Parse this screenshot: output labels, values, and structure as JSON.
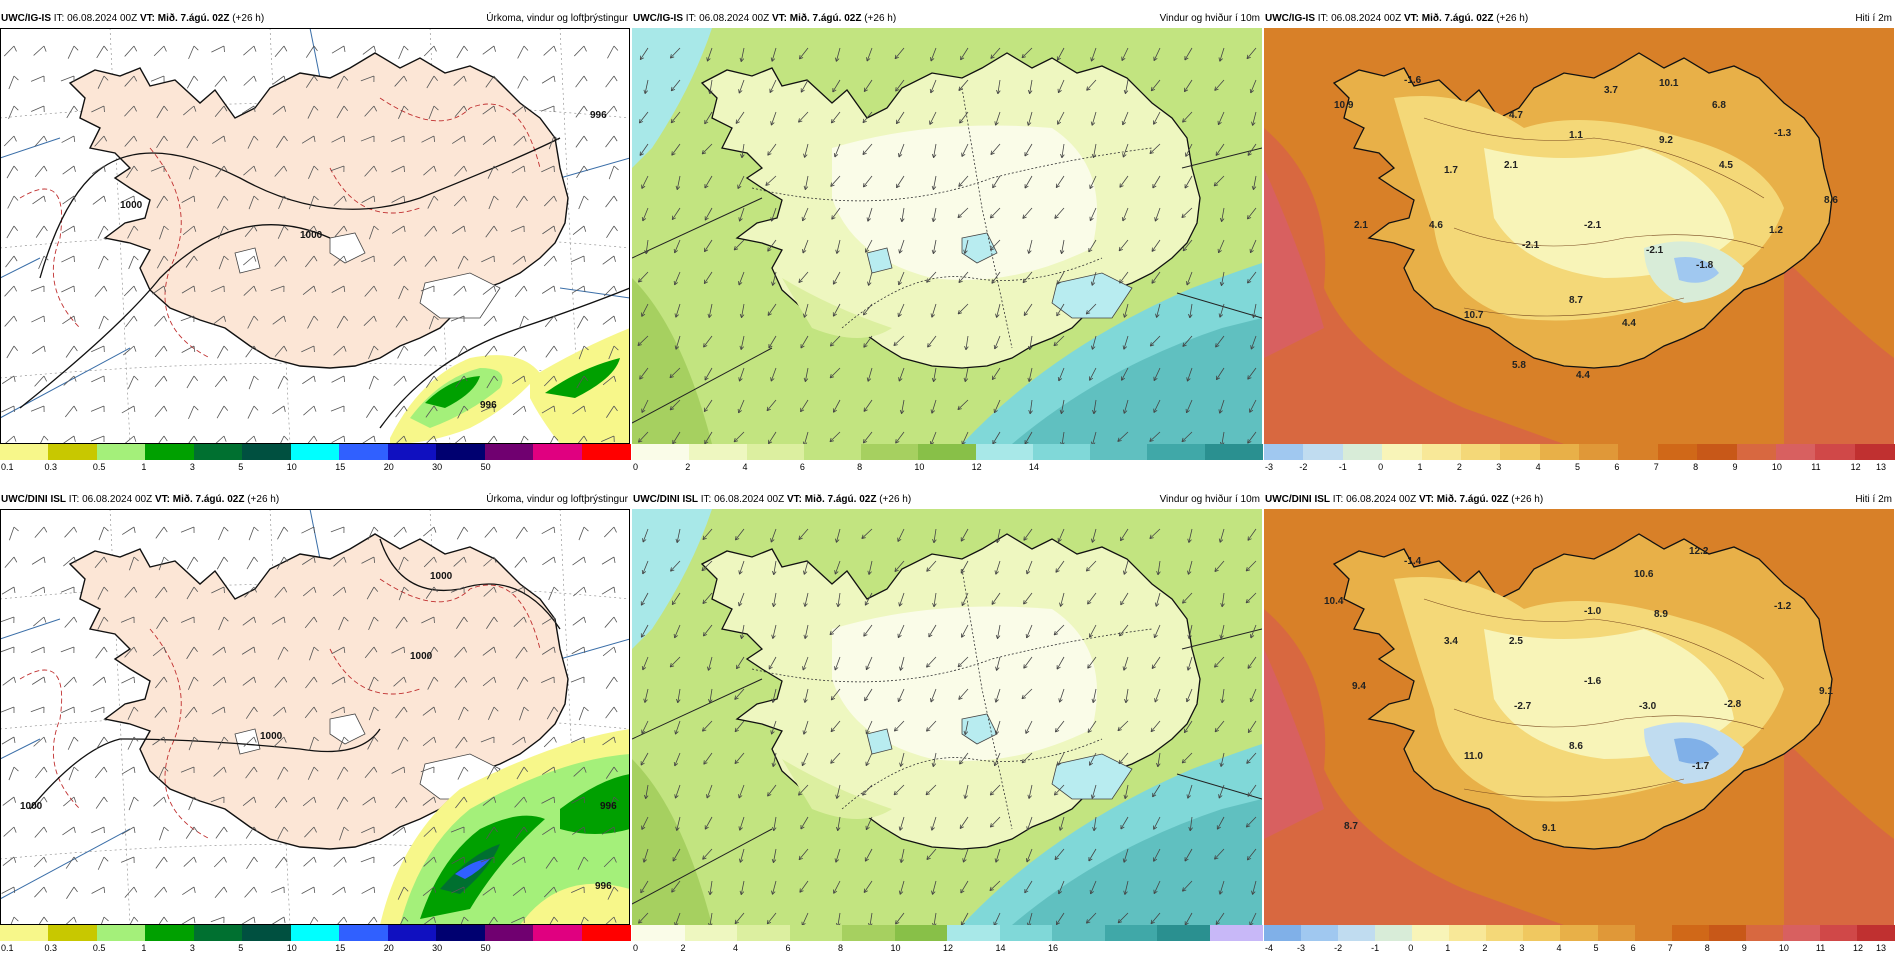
{
  "header": {
    "it_label": "IT:",
    "vt_label": "VT:",
    "run_time": "06.08.2024 00Z",
    "valid_time": "Mið. 7.ágú. 02Z",
    "lead": "(+26 h)"
  },
  "rows": [
    {
      "model": "UWC/IG-IS",
      "panels": [
        {
          "kind": "precip",
          "title": "Úrkoma, vindur og loftþrýstingur",
          "colorbar": {
            "colors": [
              "#f7f78a",
              "#c8c800",
              "#a4f07a",
              "#00a000",
              "#007030",
              "#005040",
              "#00ffff",
              "#3060ff",
              "#1010c0",
              "#000070",
              "#700070",
              "#e00080",
              "#ff0000"
            ],
            "ticks": [
              "0.1",
              "0.3",
              "0.5",
              "1",
              "3",
              "5",
              "10",
              "15",
              "20",
              "30",
              "50"
            ]
          },
          "labels": [
            {
              "text": "1000"
            },
            {
              "text": "1000"
            },
            {
              "text": "996"
            },
            {
              "text": "996"
            }
          ]
        },
        {
          "kind": "wind",
          "title": "Vindur og hviður í 10m",
          "colorbar": {
            "colors": [
              "#fafce8",
              "#eef7c0",
              "#dcefa0",
              "#c2e480",
              "#a6d060",
              "#88c048",
              "#a8e8e8",
              "#80d8d8",
              "#60c0c0",
              "#40a8a8",
              "#2a9090"
            ],
            "ticks": [
              "0",
              "2",
              "4",
              "6",
              "8",
              "10",
              "12",
              "14"
            ]
          }
        },
        {
          "kind": "temp",
          "title": "Hiti í 2m",
          "colorbar": {
            "colors": [
              "#a0c8f0",
              "#c0dcf0",
              "#d8ecd8",
              "#f8f4b8",
              "#f8e898",
              "#f4d878",
              "#f0c860",
              "#e8b048",
              "#e09838",
              "#d88028",
              "#d06818",
              "#c85818",
              "#d86840",
              "#d86060",
              "#d04848",
              "#c03030"
            ],
            "ticks": [
              "-3",
              "-2",
              "-1",
              "0",
              "1",
              "2",
              "3",
              "4",
              "5",
              "6",
              "7",
              "8",
              "9",
              "10",
              "11",
              "12",
              "13"
            ]
          },
          "values": [
            {
              "text": "-1.6"
            },
            {
              "text": "10.9"
            },
            {
              "text": "3.7"
            },
            {
              "text": "10.1"
            },
            {
              "text": "4.7"
            },
            {
              "text": "6.8"
            },
            {
              "text": "1.1"
            },
            {
              "text": "9.2"
            },
            {
              "text": "-1.3"
            },
            {
              "text": "1.7"
            },
            {
              "text": "2.1"
            },
            {
              "text": "4.5"
            },
            {
              "text": "8.6"
            },
            {
              "text": "2.1"
            },
            {
              "text": "4.6"
            },
            {
              "text": "-2.1"
            },
            {
              "text": "-2.1"
            },
            {
              "text": "-2.1"
            },
            {
              "text": "1.2"
            },
            {
              "text": "-1.8"
            },
            {
              "text": "10.7"
            },
            {
              "text": "8.7"
            },
            {
              "text": "4.4"
            },
            {
              "text": "5.8"
            },
            {
              "text": "4.4"
            }
          ]
        }
      ]
    },
    {
      "model": "UWC/DINI ISL",
      "panels": [
        {
          "kind": "precip",
          "title": "Úrkoma, vindur og loftþrýstingur",
          "colorbar": {
            "colors": [
              "#f7f78a",
              "#c8c800",
              "#a4f07a",
              "#00a000",
              "#007030",
              "#005040",
              "#00ffff",
              "#3060ff",
              "#1010c0",
              "#000070",
              "#700070",
              "#e00080",
              "#ff0000"
            ],
            "ticks": [
              "0.1",
              "0.3",
              "0.5",
              "1",
              "3",
              "5",
              "10",
              "15",
              "20",
              "30",
              "50"
            ]
          },
          "labels": [
            {
              "text": "1000"
            },
            {
              "text": "1000"
            },
            {
              "text": "1000"
            },
            {
              "text": "1000"
            },
            {
              "text": "996"
            },
            {
              "text": "996"
            }
          ]
        },
        {
          "kind": "wind",
          "title": "Vindur og hviður í 10m",
          "colorbar": {
            "colors": [
              "#fafce8",
              "#eef7c0",
              "#dcefa0",
              "#c2e480",
              "#a6d060",
              "#88c048",
              "#a8e8e8",
              "#80d8d8",
              "#60c0c0",
              "#40a8a8",
              "#2a9090",
              "#c8b8f8"
            ],
            "ticks": [
              "0",
              "2",
              "4",
              "6",
              "8",
              "10",
              "12",
              "14",
              "16"
            ]
          }
        },
        {
          "kind": "temp",
          "title": "Hiti í 2m",
          "colorbar": {
            "colors": [
              "#80b0e8",
              "#a0c8f0",
              "#c0dcf0",
              "#d8ecd8",
              "#f8f4b8",
              "#f8e898",
              "#f4d878",
              "#f0c860",
              "#e8b048",
              "#e09838",
              "#d88028",
              "#d06818",
              "#c85818",
              "#d86840",
              "#d86060",
              "#d04848",
              "#c03030"
            ],
            "ticks": [
              "-4",
              "-3",
              "-2",
              "-1",
              "0",
              "1",
              "2",
              "3",
              "4",
              "5",
              "6",
              "7",
              "8",
              "9",
              "10",
              "11",
              "12",
              "13"
            ]
          },
          "values": [
            {
              "text": "-1.4"
            },
            {
              "text": "12.2"
            },
            {
              "text": "10.6"
            },
            {
              "text": "10.4"
            },
            {
              "text": "-1.0"
            },
            {
              "text": "8.9"
            },
            {
              "text": "-1.2"
            },
            {
              "text": "3.4"
            },
            {
              "text": "2.5"
            },
            {
              "text": "9.4"
            },
            {
              "text": "-1.6"
            },
            {
              "text": "9.1"
            },
            {
              "text": "-2.7"
            },
            {
              "text": "-3.0"
            },
            {
              "text": "-2.8"
            },
            {
              "text": "11.0"
            },
            {
              "text": "8.6"
            },
            {
              "text": "-1.7"
            },
            {
              "text": "8.7"
            },
            {
              "text": "9.1"
            }
          ]
        }
      ]
    }
  ]
}
